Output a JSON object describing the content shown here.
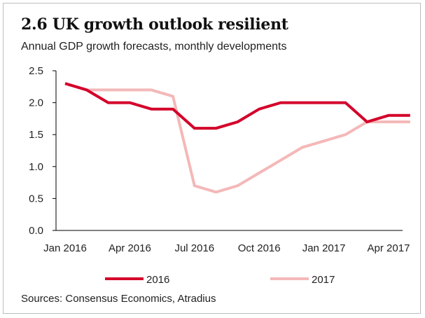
{
  "title": "2.6 UK growth outlook resilient",
  "subtitle": "Annual GDP growth forecasts, monthly developments",
  "source": "Sources: Consensus Economics, Atradius",
  "colors": {
    "s2016": "#d4002a",
    "s2017": "#f4b8b8",
    "axis": "#000000"
  },
  "chart_data": {
    "type": "line",
    "title": "2.6 UK growth outlook resilient",
    "subtitle": "Annual GDP growth forecasts, monthly developments",
    "x": [
      "Jan 2016",
      "Feb 2016",
      "Mar 2016",
      "Apr 2016",
      "May 2016",
      "Jun 2016",
      "Jul 2016",
      "Aug 2016",
      "Sep 2016",
      "Oct 2016",
      "Nov 2016",
      "Dec 2016",
      "Jan 2017",
      "Feb 2017",
      "Mar 2017",
      "Apr 2017",
      "May 2017",
      "Jun 2017"
    ],
    "x_tick_labels": [
      "Jan 2016",
      "Apr 2016",
      "Jul 2016",
      "Oct 2016",
      "Jan 2017",
      "Apr 2017"
    ],
    "ylim": [
      0,
      2.5
    ],
    "y_ticks": [
      "0.0",
      "0.5",
      "1.0",
      "1.5",
      "2.0",
      "2.5"
    ],
    "grid": false,
    "legend_position": "bottom",
    "series": [
      {
        "name": "2016",
        "values": [
          2.3,
          2.2,
          2.0,
          2.0,
          1.9,
          1.9,
          1.6,
          1.6,
          1.7,
          1.9,
          2.0,
          2.0,
          2.0,
          2.0,
          1.7,
          1.8,
          1.8,
          null
        ]
      },
      {
        "name": "2017",
        "values": [
          2.3,
          2.2,
          2.2,
          2.2,
          2.2,
          2.1,
          0.7,
          0.6,
          0.7,
          0.9,
          1.1,
          1.3,
          1.4,
          1.5,
          1.7,
          1.7,
          1.7,
          null
        ]
      }
    ]
  }
}
